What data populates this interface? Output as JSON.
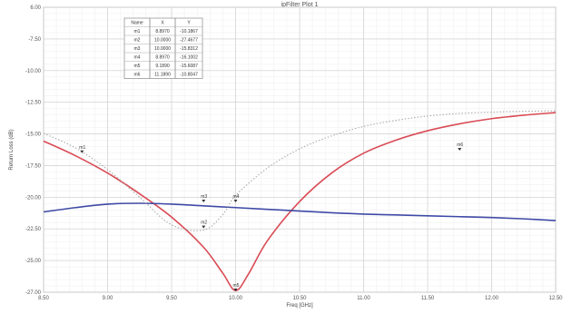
{
  "window": {
    "title": "ipFilter Plot 1"
  },
  "chart_data": {
    "type": "line",
    "title": "ipFilter Plot 1",
    "xlabel": "Freq [GHz]",
    "ylabel": "Return Loss (dB)",
    "xlim": [
      8.5,
      12.5
    ],
    "ylim": [
      -27.0,
      6.0
    ],
    "x_ticks": [
      "8.50",
      "9.00",
      "9.50",
      "10.00",
      "10.50",
      "11.00",
      "11.50",
      "12.00",
      "12.50"
    ],
    "y_ticks": [
      "6.00",
      "-7.50",
      "-10.00",
      "-12.50",
      "-15.00",
      "-17.50",
      "-20.00",
      "-22.50",
      "-25.00",
      "-27.00"
    ],
    "grid": true,
    "series": [
      {
        "color": "#d94b55",
        "style": "solid",
        "x": [
          8.5,
          8.75,
          9.0,
          9.25,
          9.5,
          9.75,
          9.9,
          10.0,
          10.1,
          10.25,
          10.5,
          10.75,
          11.0,
          11.25,
          11.5,
          11.75,
          12.0,
          12.25,
          12.5
        ],
        "y": [
          -9.5,
          -11.2,
          -13.2,
          -15.6,
          -18.3,
          -21.8,
          -24.8,
          -26.8,
          -24.9,
          -21.0,
          -16.5,
          -13.2,
          -10.9,
          -9.4,
          -8.3,
          -7.5,
          -6.9,
          -6.5,
          -6.2
        ]
      },
      {
        "color": "#3e4aa6",
        "style": "solid",
        "x": [
          8.5,
          8.75,
          9.0,
          9.25,
          9.5,
          9.75,
          10.0,
          10.25,
          10.5,
          10.75,
          11.0,
          11.25,
          11.5,
          11.75,
          12.0,
          12.25,
          12.5
        ],
        "y": [
          -17.7,
          -17.2,
          -16.8,
          -16.7,
          -16.8,
          -17.0,
          -17.2,
          -17.4,
          -17.6,
          -17.8,
          -17.95,
          -18.05,
          -18.15,
          -18.25,
          -18.35,
          -18.5,
          -18.7
        ]
      },
      {
        "color": "#aaaaaa",
        "style": "dotted",
        "x": [
          8.5,
          8.75,
          9.0,
          9.25,
          9.5,
          9.75,
          9.9,
          10.0,
          10.25,
          10.5,
          10.75,
          11.0,
          11.25,
          11.5,
          11.75,
          12.0,
          12.25,
          12.5
        ],
        "y": [
          -8.6,
          -10.3,
          -12.8,
          -16.0,
          -19.2,
          -19.8,
          -18.0,
          -15.8,
          -12.6,
          -10.4,
          -8.9,
          -7.8,
          -7.1,
          -6.6,
          -6.3,
          -6.15,
          -6.05,
          -6.0
        ]
      }
    ],
    "markers": [
      {
        "name": "m1",
        "x": 8.8,
        "y": -10.9
      },
      {
        "name": "m2",
        "x": 9.75,
        "y": -19.6
      },
      {
        "name": "m3",
        "x": 9.75,
        "y": -16.6
      },
      {
        "name": "m4",
        "x": 10.0,
        "y": -16.6
      },
      {
        "name": "m5",
        "x": 10.0,
        "y": -26.9
      },
      {
        "name": "m6",
        "x": 11.75,
        "y": -10.6
      }
    ],
    "marker_table": {
      "headers": [
        "Name",
        "X",
        "Y"
      ],
      "rows": [
        [
          "m1",
          "8.8970",
          "-10.1867"
        ],
        [
          "m2",
          "10.0000",
          "-27.4677"
        ],
        [
          "m3",
          "10.0000",
          "-15.8312"
        ],
        [
          "m4",
          "8.8970",
          "-16.1002"
        ],
        [
          "m5",
          "9.1890",
          "-15.6087"
        ],
        [
          "m6",
          "11.1890",
          "-10.8047"
        ]
      ]
    }
  }
}
